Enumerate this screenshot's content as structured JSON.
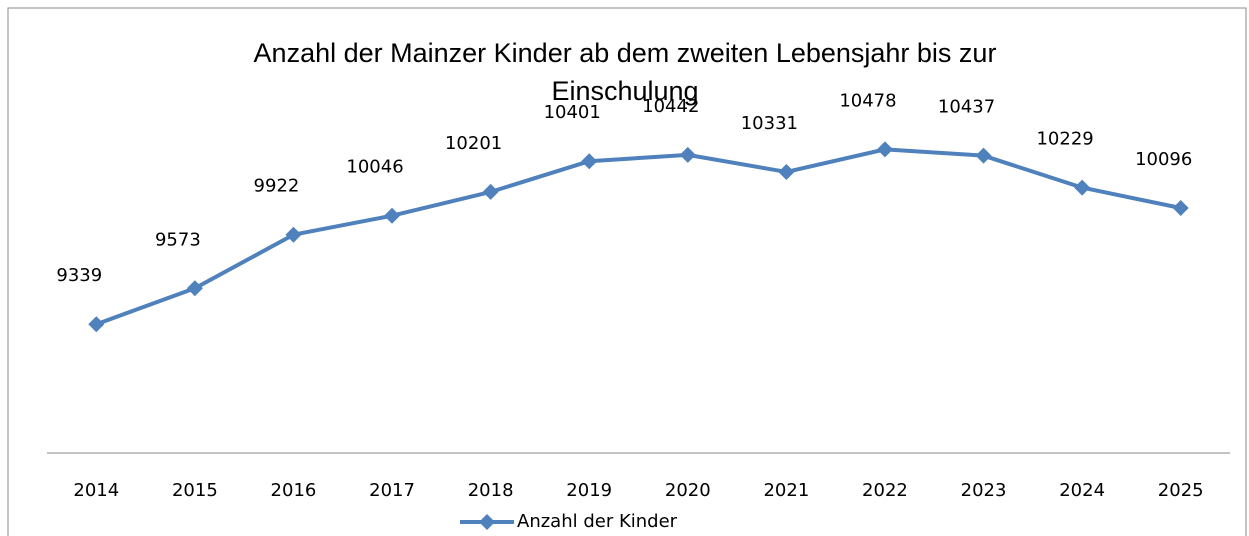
{
  "chart_data": {
    "type": "line",
    "title": "Anzahl der Mainzer Kinder ab dem zweiten Lebensjahr bis zur Einschulung",
    "categories": [
      "2014",
      "2015",
      "2016",
      "2017",
      "2018",
      "2019",
      "2020",
      "2021",
      "2022",
      "2023",
      "2024",
      "2025"
    ],
    "series": [
      {
        "name": "Anzahl der Kinder",
        "color": "#4f81bd",
        "values": [
          9339,
          9573,
          9922,
          10046,
          10201,
          10401,
          10442,
          10331,
          10478,
          10437,
          10229,
          10096
        ]
      }
    ],
    "ylim": [
      8500,
      10500
    ],
    "legend": "bottom",
    "data_labels": true
  }
}
